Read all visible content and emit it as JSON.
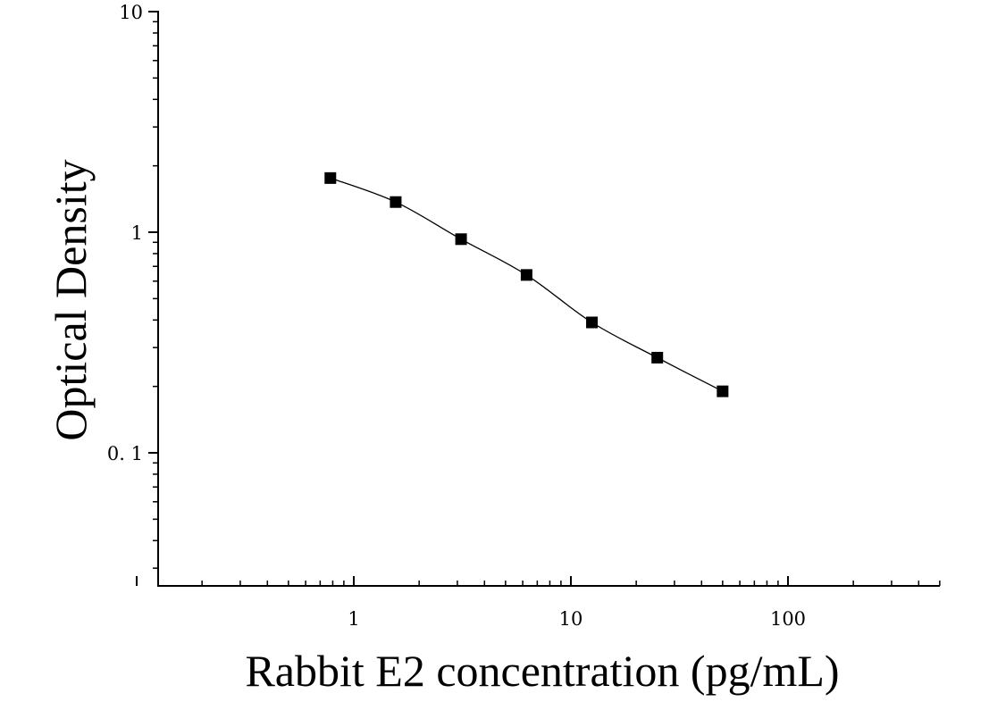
{
  "chart_data": {
    "type": "scatter",
    "title": "",
    "xlabel": "Rabbit E2 concentration (pg/mL)",
    "ylabel": "Optical Density",
    "x_scale": "log",
    "y_scale": "log",
    "xlim": [
      0.1,
      500
    ],
    "ylim": [
      0.03,
      10
    ],
    "x_ticks": [
      {
        "value": 1,
        "label": "1"
      },
      {
        "value": 10,
        "label": "10"
      },
      {
        "value": 100,
        "label": "100"
      }
    ],
    "y_ticks": [
      {
        "value": 0.1,
        "label": "0. 1"
      },
      {
        "value": 1,
        "label": "1"
      },
      {
        "value": 10,
        "label": "10"
      }
    ],
    "grid": false,
    "legend": "none",
    "marker": "square",
    "fitted_curve": true,
    "series": [
      {
        "x": [
          0.78,
          1.56,
          3.12,
          6.25,
          12.5,
          25,
          50
        ],
        "y": [
          1.76,
          1.37,
          0.93,
          0.64,
          0.39,
          0.27,
          0.19
        ]
      }
    ],
    "colors": {
      "marker": "#000000",
      "curve": "#000000",
      "axis": "#000000"
    }
  }
}
